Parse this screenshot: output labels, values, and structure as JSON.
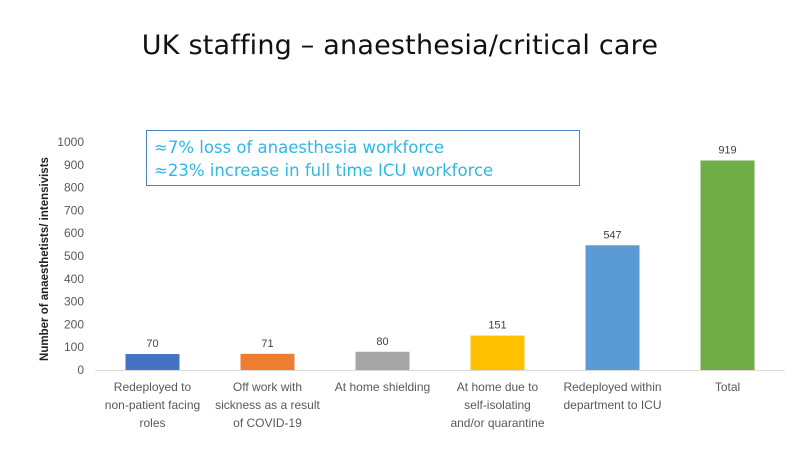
{
  "title": "UK staffing – anaesthesia/critical care",
  "callout": {
    "line1": "≈7% loss of anaesthesia workforce",
    "line2": "≈23% increase in full time ICU workforce",
    "color": "#2eb8e6",
    "border_color": "#4a86c5"
  },
  "chart_data": {
    "type": "bar",
    "title": "",
    "xlabel": "",
    "ylabel": "Number of anaesthetists/ intensivists",
    "ylim": [
      0,
      1000
    ],
    "yticks": [
      0,
      100,
      200,
      300,
      400,
      500,
      600,
      700,
      800,
      900,
      1000
    ],
    "grid": false,
    "legend": "none",
    "categories": [
      [
        "Redeployed to",
        "non-patient facing",
        "roles"
      ],
      [
        "Off work with",
        "sickness as a result",
        "of COVID-19"
      ],
      [
        "At home shielding"
      ],
      [
        "At home due to",
        "self-isolating",
        "and/or quarantine"
      ],
      [
        "Redeployed within",
        "department to ICU"
      ],
      [
        "Total"
      ]
    ],
    "values": [
      70,
      71,
      80,
      151,
      547,
      919
    ],
    "colors": [
      "#4472c4",
      "#ed7d31",
      "#a5a5a5",
      "#ffc000",
      "#5b9bd5",
      "#70ad47"
    ]
  }
}
